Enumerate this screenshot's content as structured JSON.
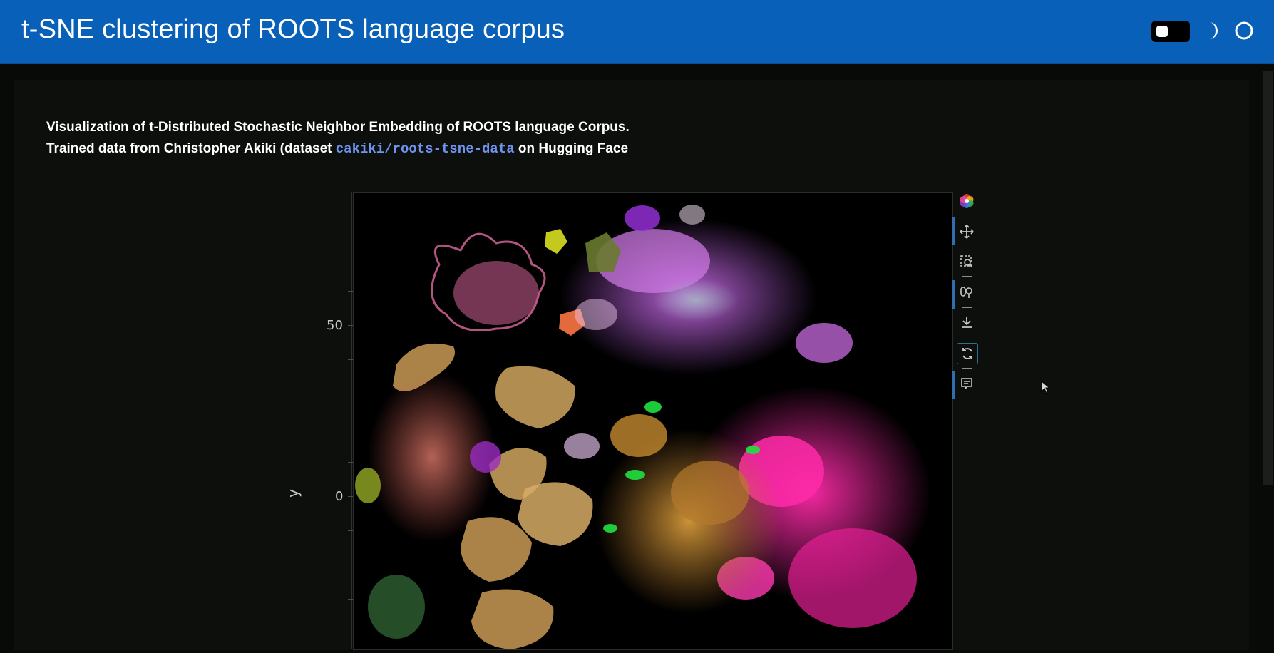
{
  "header": {
    "title": "t-SNE clustering of ROOTS language corpus",
    "theme_toggle_icon": "toggle-switch-icon",
    "dark_mode_icon": "moon-icon",
    "light_mode_icon": "circle-icon"
  },
  "description": {
    "line1": "Visualization of t-Distributed Stochastic Neighbor Embedding of ROOTS language Corpus.",
    "line2_prefix": "Trained data from Christopher Akiki (dataset ",
    "dataset_link": "cakiki/roots-tsne-data",
    "line2_suffix": " on Hugging Face"
  },
  "plot": {
    "ylabel": "y",
    "yticks": [
      "50",
      "0"
    ]
  },
  "toolbar": {
    "items": [
      {
        "icon": "bokeh-logo-icon"
      },
      {
        "icon": "pan-icon"
      },
      {
        "icon": "box-zoom-icon"
      },
      {
        "icon": "wheel-zoom-icon"
      },
      {
        "icon": "save-icon"
      },
      {
        "icon": "reset-icon"
      },
      {
        "icon": "hover-icon"
      }
    ]
  },
  "colors": {
    "header_bg": "#0860b8",
    "page_bg": "#070a07",
    "link": "#6f93ee",
    "plot_bg": "#000000"
  }
}
